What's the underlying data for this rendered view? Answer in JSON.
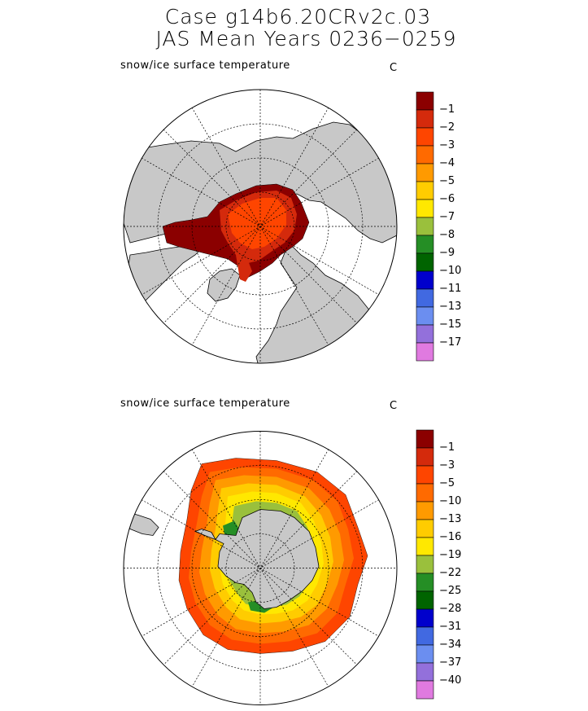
{
  "title": {
    "line1": "Case g14b6.20CRv2c.03",
    "line2": "JAS Mean    Years 0236−0259"
  },
  "panels": [
    {
      "id": "north",
      "variable_label": "snow/ice surface temperature",
      "units": "C",
      "hemisphere": "Northern",
      "colorbar": {
        "labels": [
          "−1",
          "−2",
          "−3",
          "−4",
          "−5",
          "−6",
          "−7",
          "−8",
          "−9",
          "−10",
          "−11",
          "−13",
          "−15",
          "−17"
        ],
        "colors": [
          "#8b0000",
          "#d42a0c",
          "#fe4500",
          "#ff6a00",
          "#ff9a00",
          "#ffcc00",
          "#ffe800",
          "#9ac03c",
          "#258e25",
          "#006400",
          "#0000cc",
          "#4169e1",
          "#6b8ef0",
          "#9370db",
          "#e07ae0"
        ]
      }
    },
    {
      "id": "south",
      "variable_label": "snow/ice surface temperature",
      "units": "C",
      "hemisphere": "Southern",
      "colorbar": {
        "labels": [
          "−1",
          "−3",
          "−5",
          "−10",
          "−13",
          "−16",
          "−19",
          "−22",
          "−25",
          "−28",
          "−31",
          "−34",
          "−37",
          "−40"
        ],
        "colors": [
          "#8b0000",
          "#d42a0c",
          "#fe4500",
          "#ff6a00",
          "#ff9a00",
          "#ffcc00",
          "#ffe800",
          "#9ac03c",
          "#258e25",
          "#006400",
          "#0000cc",
          "#4169e1",
          "#6b8ef0",
          "#9370db",
          "#e07ae0"
        ]
      }
    }
  ]
}
